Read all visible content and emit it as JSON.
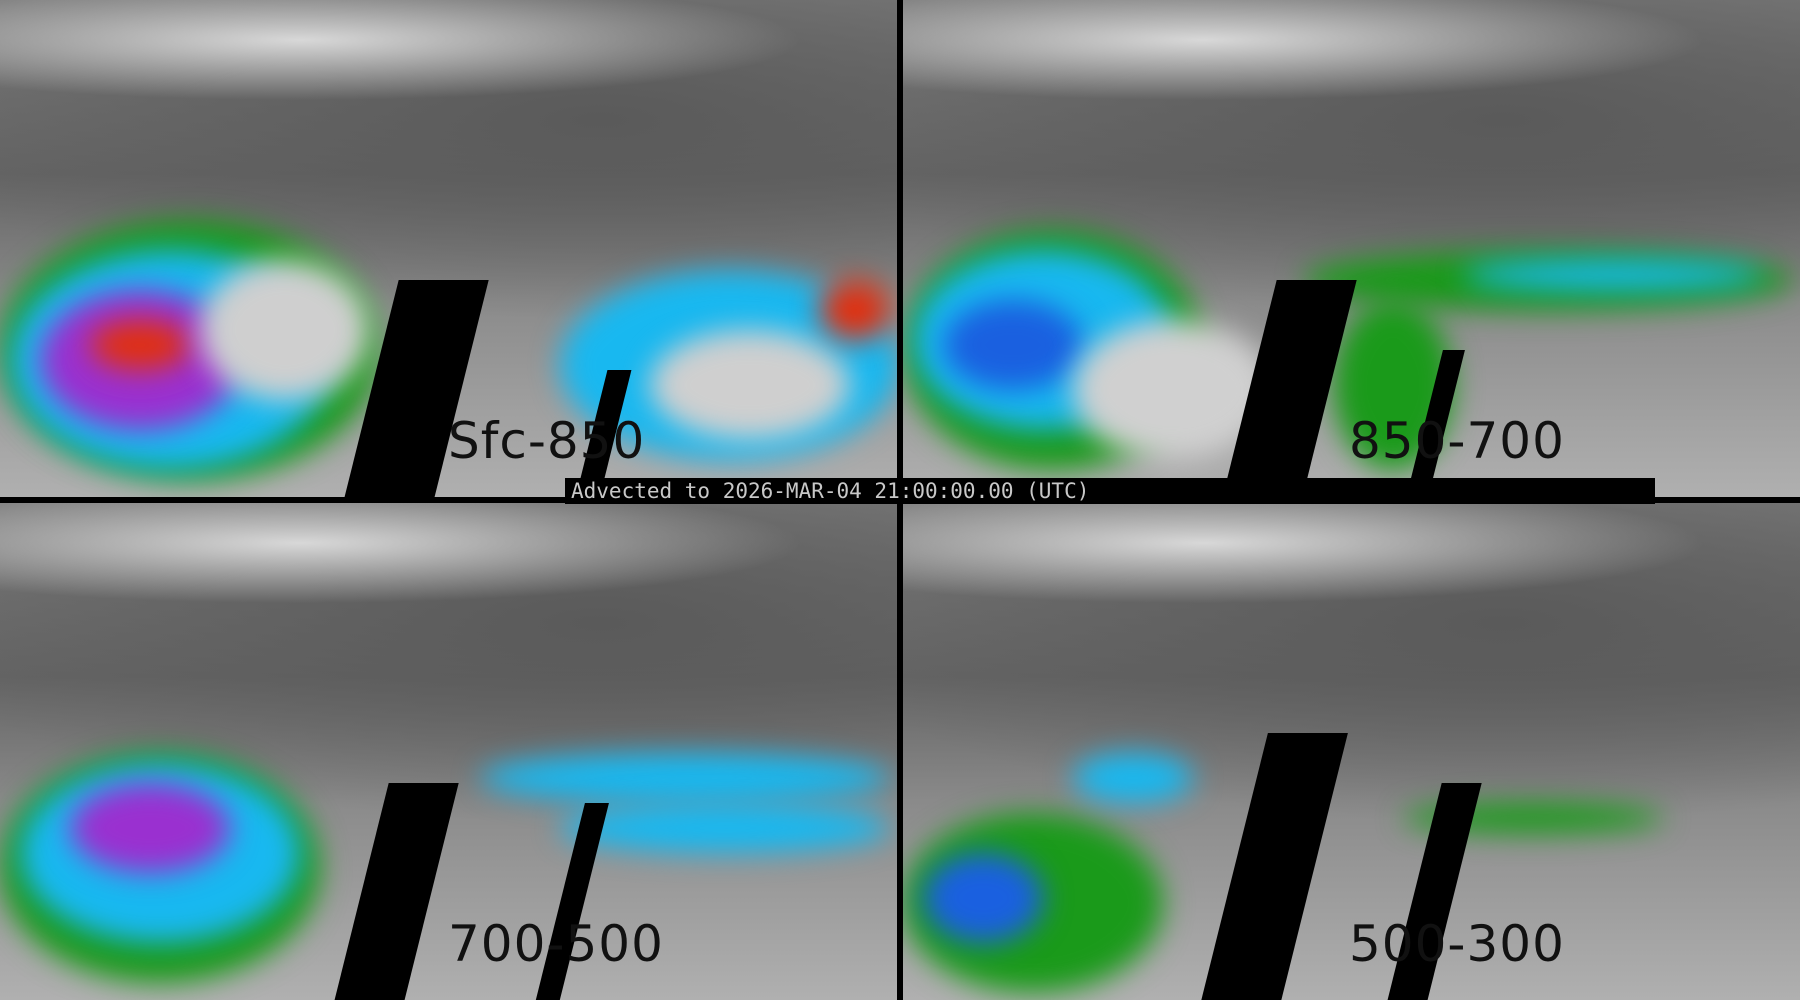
{
  "banner": {
    "text": "Advected to 2026-MAR-04 21:00:00.00 (UTC)"
  },
  "panels": [
    {
      "label": "Sfc-850"
    },
    {
      "label": "850-700"
    },
    {
      "label": "700-500"
    },
    {
      "label": "500-300"
    }
  ],
  "colors": {
    "low": "#808080",
    "green": "#1a9a1a",
    "cyan": "#18b8f0",
    "blue": "#1a60e0",
    "purple": "#9a30d0",
    "red": "#e03010"
  }
}
